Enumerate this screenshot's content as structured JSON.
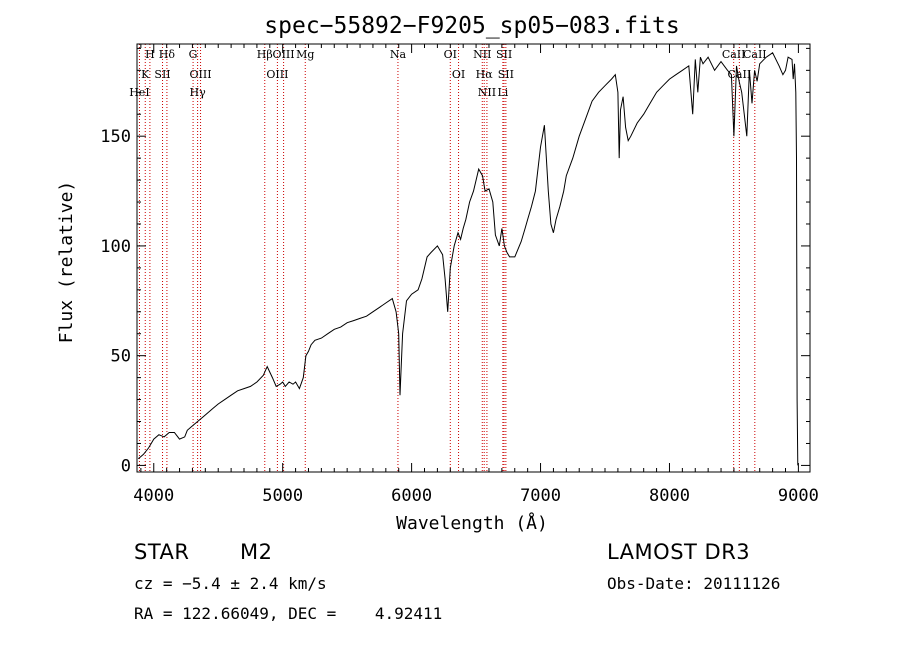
{
  "chart_data": {
    "type": "line",
    "title": "spec−55892−F9205_sp05−083.fits",
    "xlabel": "Wavelength (Å)",
    "ylabel": "Flux (relative)",
    "xlim": [
      3870,
      9090
    ],
    "ylim": [
      -3,
      192
    ],
    "x_ticks": [
      4000,
      5000,
      6000,
      7000,
      8000,
      9000
    ],
    "y_ticks": [
      0,
      50,
      100,
      150
    ],
    "series": [
      {
        "name": "flux",
        "x": [
          3880,
          3920,
          3960,
          4000,
          4040,
          4080,
          4120,
          4160,
          4200,
          4240,
          4260,
          4300,
          4340,
          4380,
          4420,
          4460,
          4500,
          4550,
          4600,
          4650,
          4700,
          4750,
          4800,
          4850,
          4880,
          4920,
          4950,
          4980,
          5000,
          5020,
          5050,
          5080,
          5100,
          5130,
          5160,
          5180,
          5200,
          5220,
          5250,
          5300,
          5350,
          5400,
          5450,
          5500,
          5550,
          5600,
          5650,
          5700,
          5750,
          5800,
          5850,
          5880,
          5900,
          5910,
          5930,
          5960,
          6000,
          6050,
          6080,
          6100,
          6120,
          6150,
          6200,
          6240,
          6260,
          6280,
          6300,
          6330,
          6360,
          6380,
          6400,
          6420,
          6450,
          6480,
          6500,
          6520,
          6550,
          6570,
          6600,
          6630,
          6650,
          6680,
          6700,
          6720,
          6740,
          6760,
          6800,
          6850,
          6880,
          6900,
          6930,
          6960,
          7000,
          7030,
          7060,
          7080,
          7100,
          7120,
          7150,
          7180,
          7200,
          7250,
          7300,
          7350,
          7400,
          7450,
          7500,
          7550,
          7580,
          7600,
          7610,
          7620,
          7640,
          7660,
          7680,
          7700,
          7750,
          7800,
          7850,
          7900,
          7950,
          8000,
          8050,
          8100,
          8150,
          8180,
          8200,
          8220,
          8240,
          8260,
          8300,
          8350,
          8400,
          8450,
          8480,
          8500,
          8520,
          8540,
          8560,
          8600,
          8620,
          8640,
          8660,
          8680,
          8700,
          8750,
          8800,
          8850,
          8880,
          8900,
          8920,
          8950,
          8960,
          8970,
          8980,
          8985,
          8990,
          8995
        ],
        "values": [
          3,
          5,
          8,
          12,
          14,
          13,
          15,
          15,
          12,
          13,
          16,
          18,
          20,
          22,
          24,
          26,
          28,
          30,
          32,
          34,
          35,
          36,
          38,
          41,
          45,
          40,
          36,
          37,
          38,
          36,
          38,
          37,
          38,
          35,
          40,
          50,
          52,
          55,
          57,
          58,
          60,
          62,
          63,
          65,
          66,
          67,
          68,
          70,
          72,
          74,
          76,
          70,
          60,
          32,
          60,
          75,
          78,
          80,
          85,
          90,
          95,
          97,
          100,
          96,
          85,
          70,
          90,
          100,
          106,
          103,
          108,
          112,
          120,
          125,
          130,
          135,
          132,
          125,
          126,
          120,
          105,
          100,
          108,
          100,
          97,
          95,
          95,
          102,
          108,
          112,
          118,
          125,
          145,
          155,
          125,
          110,
          106,
          112,
          118,
          125,
          132,
          140,
          150,
          158,
          166,
          170,
          173,
          176,
          178,
          170,
          140,
          162,
          168,
          154,
          148,
          150,
          156,
          160,
          165,
          170,
          173,
          176,
          178,
          180,
          182,
          160,
          185,
          170,
          186,
          183,
          186,
          180,
          184,
          180,
          178,
          150,
          182,
          175,
          170,
          150,
          180,
          165,
          180,
          175,
          183,
          186,
          188,
          182,
          178,
          180,
          186,
          185,
          176,
          183,
          170,
          140,
          30,
          0
        ]
      }
    ],
    "lines": [
      {
        "name": "H",
        "wavelength": 3970
      },
      {
        "name": "K",
        "wavelength": 3934
      },
      {
        "name": "HeI",
        "wavelength": 3889
      },
      {
        "name": "SII",
        "wavelength": 4068
      },
      {
        "name": "Hδ",
        "wavelength": 4102
      },
      {
        "name": "G",
        "wavelength": 4305
      },
      {
        "name": "OIII",
        "wavelength": 4363
      },
      {
        "name": "Hγ",
        "wavelength": 4340
      },
      {
        "name": "Hβ",
        "wavelength": 4861
      },
      {
        "name": "OIII",
        "wavelength": 4959
      },
      {
        "name": "OIII",
        "wavelength": 5007
      },
      {
        "name": "Mg",
        "wavelength": 5175
      },
      {
        "name": "Na",
        "wavelength": 5894
      },
      {
        "name": "OI",
        "wavelength": 6300
      },
      {
        "name": "OI",
        "wavelength": 6364
      },
      {
        "name": "NII",
        "wavelength": 6548
      },
      {
        "name": "Hα",
        "wavelength": 6563
      },
      {
        "name": "NII",
        "wavelength": 6584
      },
      {
        "name": "SII",
        "wavelength": 6717
      },
      {
        "name": "SII",
        "wavelength": 6731
      },
      {
        "name": "Li",
        "wavelength": 6708
      },
      {
        "name": "CaII",
        "wavelength": 8498
      },
      {
        "name": "CaII",
        "wavelength": 8542
      },
      {
        "name": "CaII",
        "wavelength": 8662
      }
    ],
    "line_color": "#cc0000"
  },
  "info": {
    "object_class": "STAR",
    "subclass": "M2",
    "survey": "LAMOST DR3",
    "cz": "cz = −5.4 ± 2.4 km/s",
    "obs_date": "Obs-Date: 20111126",
    "coords": "RA = 122.66049, DEC =    4.92411"
  }
}
